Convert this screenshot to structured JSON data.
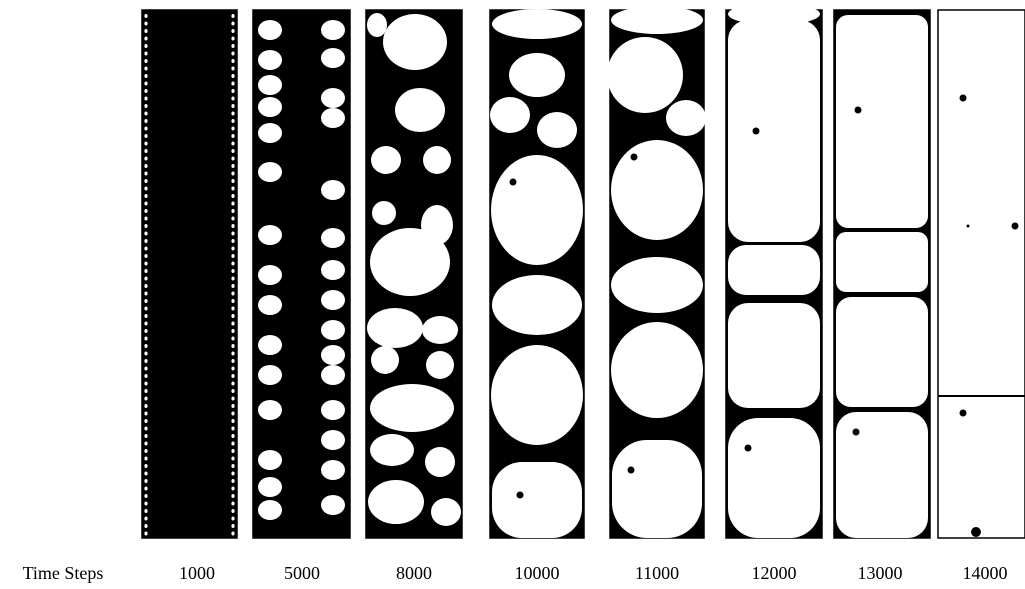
{
  "row_label": "Time Steps",
  "time_steps": [
    "1000",
    "5000",
    "8000",
    "10000",
    "11000",
    "12000",
    "13000",
    "14000"
  ]
}
